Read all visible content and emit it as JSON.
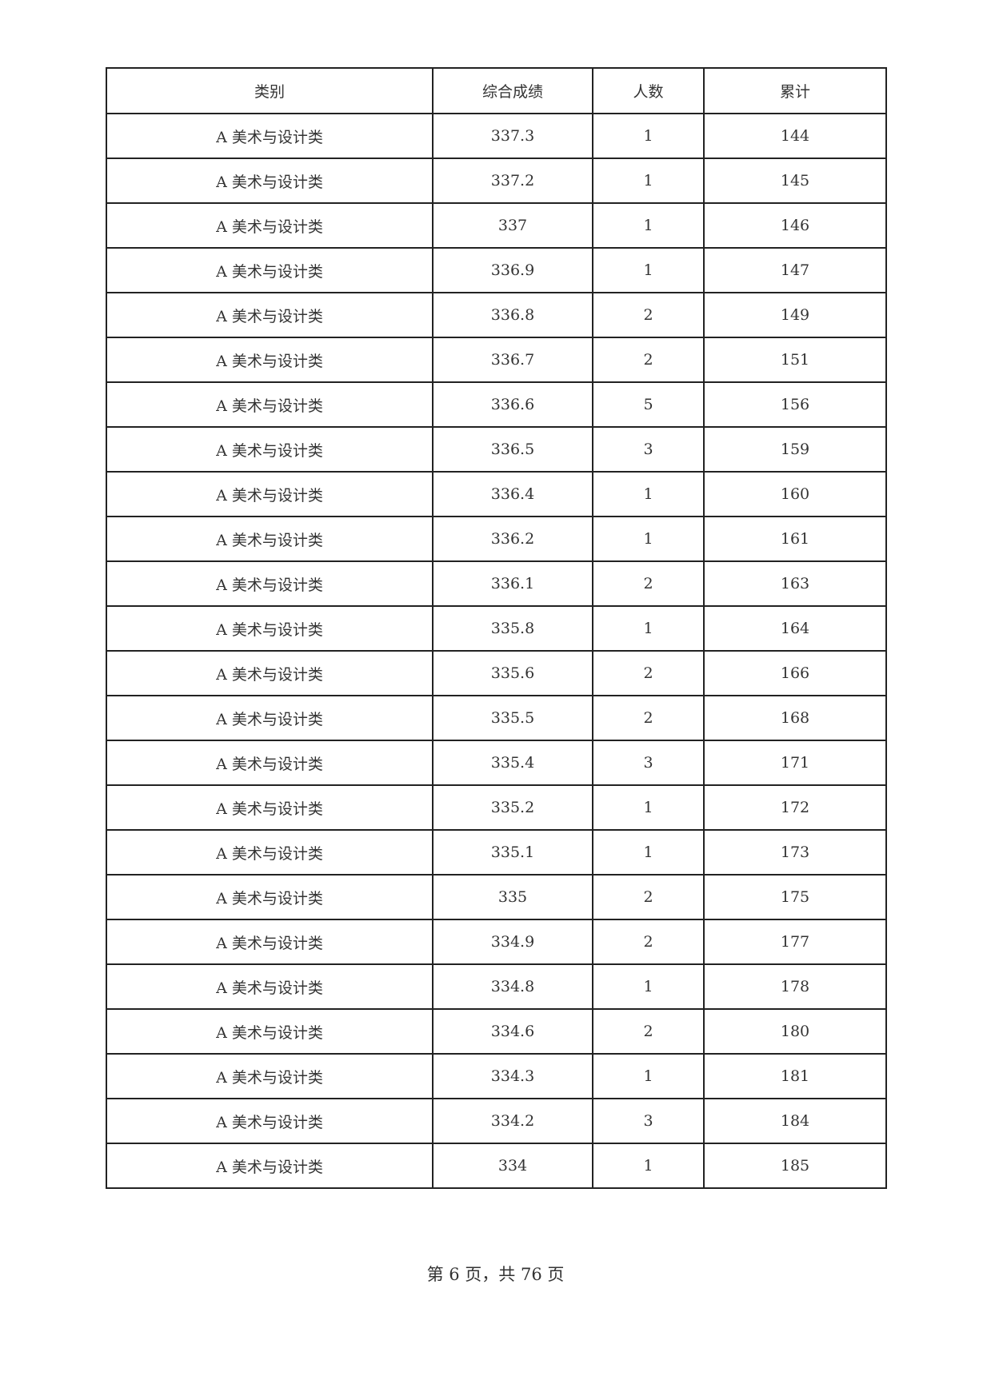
{
  "table": {
    "headers": [
      "类别",
      "综合成绩",
      "人数",
      "累计"
    ],
    "rows": [
      [
        "A 美术与设计类",
        "337.3",
        "1",
        "144"
      ],
      [
        "A 美术与设计类",
        "337.2",
        "1",
        "145"
      ],
      [
        "A 美术与设计类",
        "337",
        "1",
        "146"
      ],
      [
        "A 美术与设计类",
        "336.9",
        "1",
        "147"
      ],
      [
        "A 美术与设计类",
        "336.8",
        "2",
        "149"
      ],
      [
        "A 美术与设计类",
        "336.7",
        "2",
        "151"
      ],
      [
        "A 美术与设计类",
        "336.6",
        "5",
        "156"
      ],
      [
        "A 美术与设计类",
        "336.5",
        "3",
        "159"
      ],
      [
        "A 美术与设计类",
        "336.4",
        "1",
        "160"
      ],
      [
        "A 美术与设计类",
        "336.2",
        "1",
        "161"
      ],
      [
        "A 美术与设计类",
        "336.1",
        "2",
        "163"
      ],
      [
        "A 美术与设计类",
        "335.8",
        "1",
        "164"
      ],
      [
        "A 美术与设计类",
        "335.6",
        "2",
        "166"
      ],
      [
        "A 美术与设计类",
        "335.5",
        "2",
        "168"
      ],
      [
        "A 美术与设计类",
        "335.4",
        "3",
        "171"
      ],
      [
        "A 美术与设计类",
        "335.2",
        "1",
        "172"
      ],
      [
        "A 美术与设计类",
        "335.1",
        "1",
        "173"
      ],
      [
        "A 美术与设计类",
        "335",
        "2",
        "175"
      ],
      [
        "A 美术与设计类",
        "334.9",
        "2",
        "177"
      ],
      [
        "A 美术与设计类",
        "334.8",
        "1",
        "178"
      ],
      [
        "A 美术与设计类",
        "334.6",
        "2",
        "180"
      ],
      [
        "A 美术与设计类",
        "334.3",
        "1",
        "181"
      ],
      [
        "A 美术与设计类",
        "334.2",
        "3",
        "184"
      ],
      [
        "A 美术与设计类",
        "334",
        "1",
        "185"
      ]
    ]
  },
  "footer": {
    "page_label": "第 6 页，共 76 页"
  }
}
